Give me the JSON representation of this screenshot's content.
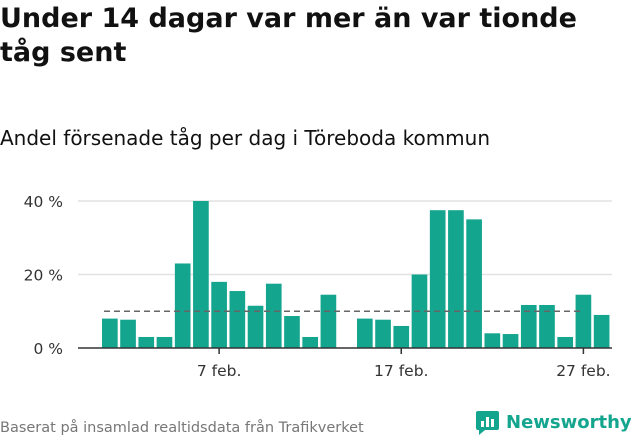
{
  "title": "Under 14 dagar var mer än var tionde tåg sent",
  "subtitle": "Andel försenade tåg per dag i Töreboda kommun",
  "footer": "Baserat på insamlad realtidsdata från Trafikverket",
  "brand": "Newsworthy",
  "colors": {
    "bar": "#14a58e",
    "brand": "#14a58e",
    "reference_line": "#666666",
    "grid": "#e2e2e2"
  },
  "chart_data": {
    "type": "bar",
    "title": "Under 14 dagar var mer än var tionde tåg sent",
    "subtitle": "Andel försenade tåg per dag i Töreboda kommun",
    "xlabel": "",
    "ylabel": "",
    "x": [
      "2024-02-01",
      "2024-02-02",
      "2024-02-03",
      "2024-02-04",
      "2024-02-05",
      "2024-02-06",
      "2024-02-07",
      "2024-02-08",
      "2024-02-09",
      "2024-02-10",
      "2024-02-11",
      "2024-02-12",
      "2024-02-13",
      "2024-02-14",
      "2024-02-15",
      "2024-02-16",
      "2024-02-17",
      "2024-02-18",
      "2024-02-19",
      "2024-02-20",
      "2024-02-21",
      "2024-02-22",
      "2024-02-23",
      "2024-02-24",
      "2024-02-25",
      "2024-02-26",
      "2024-02-27",
      "2024-02-28"
    ],
    "values": [
      8,
      7.7,
      3,
      3,
      23,
      40,
      18,
      15.5,
      11.5,
      17.5,
      8.7,
      3,
      14.5,
      null,
      8,
      7.7,
      6,
      20,
      37.5,
      37.5,
      35,
      4,
      3.8,
      11.7,
      11.7,
      3,
      14.5,
      9
    ],
    "reference_line": 10,
    "ylim": [
      0,
      40
    ],
    "y_ticks": [
      0,
      20,
      40
    ],
    "y_tick_labels": [
      "0 %",
      "20 %",
      "40 %"
    ],
    "x_ticks": [
      "2024-02-07",
      "2024-02-17",
      "2024-02-27"
    ],
    "x_tick_labels": [
      "7 feb.",
      "17 feb.",
      "27 feb."
    ],
    "grid": true
  }
}
